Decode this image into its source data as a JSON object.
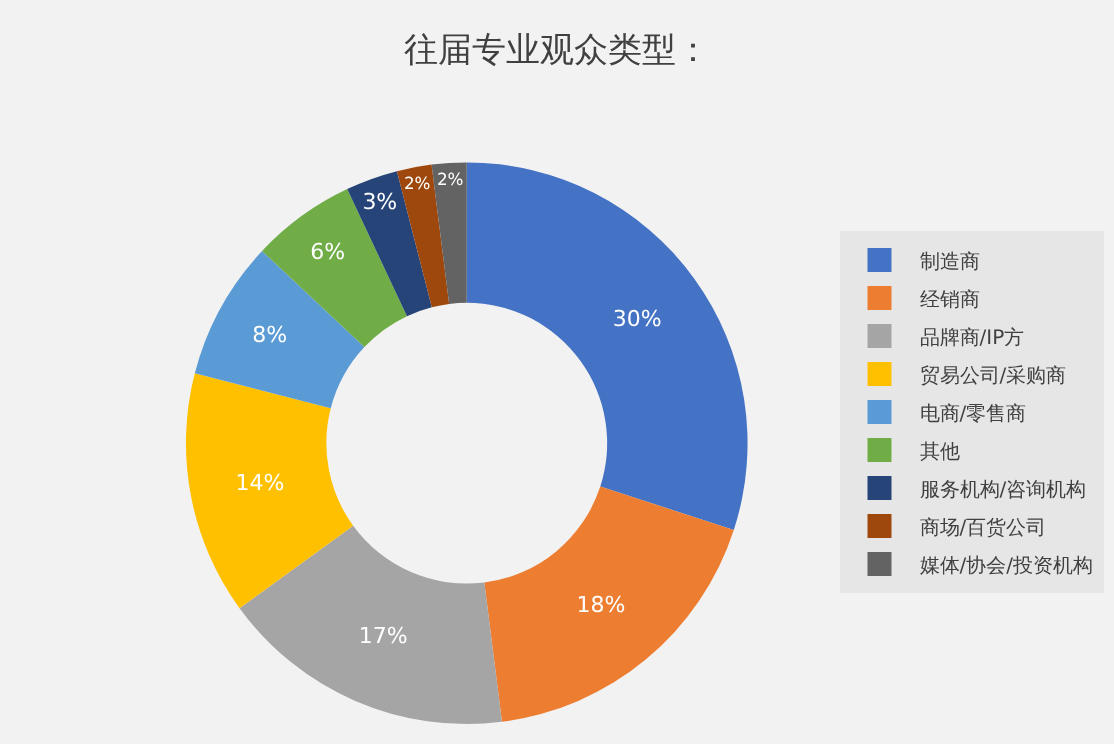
{
  "chart_data": {
    "type": "donut",
    "title": "往届专业观众类型：",
    "categories": [
      "制造商",
      "经销商",
      "品牌商/IP方",
      "贸易公司/采购商",
      "电商/零售商",
      "其他",
      "服务机构/咨询机构",
      "商场/百货公司",
      "媒体/协会/投资机构"
    ],
    "values": [
      30,
      18,
      17,
      14,
      8,
      6,
      3,
      2,
      2
    ],
    "value_labels": [
      "30%",
      "18%",
      "17%",
      "14%",
      "8%",
      "6%",
      "3%",
      "2%",
      "2%"
    ],
    "colors": [
      "#4472c4",
      "#ed7d31",
      "#a5a5a5",
      "#ffc000",
      "#5b9bd5",
      "#70ad47",
      "#264478",
      "#9e480e",
      "#636363"
    ],
    "legend": "right"
  }
}
